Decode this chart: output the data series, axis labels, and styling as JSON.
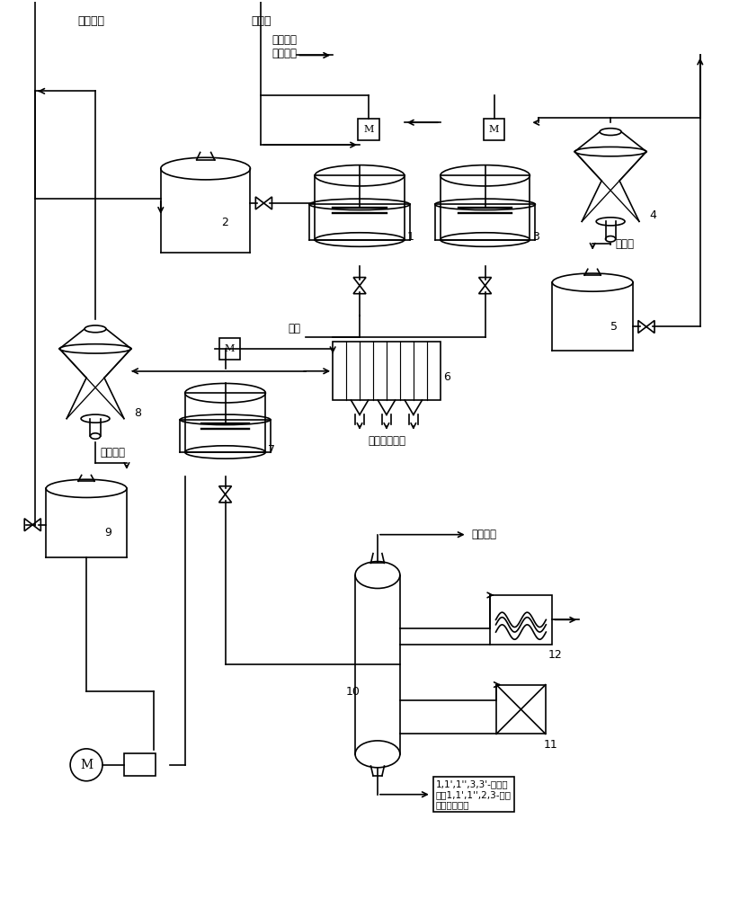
{
  "bg_color": "#ffffff",
  "line_color": "#000000",
  "line_width": 1.2,
  "fig_width": 8.22,
  "fig_height": 10.0,
  "labels": {
    "CCl4_top": "四氯化碳",
    "vinyl_top": "氯乙烯",
    "catalyst": "催化剂、\n助催化剂",
    "filtrate": "滤液",
    "filter_cake": "滤饼（套用）",
    "CCl4_mid": "四氯化碳",
    "vinyl_mid": "氯乙烯",
    "top_product": "塔顶产品",
    "bottom_product": "1,1',1'',3,3'-五氯丙\n烷和1,1',1'',2,3-五氯\n丙烷的混合物",
    "eq1": "1",
    "eq2": "2",
    "eq3": "3",
    "eq4": "4",
    "eq5": "5",
    "eq6": "6",
    "eq7": "7",
    "eq8": "8",
    "eq9": "9",
    "eq10": "10",
    "eq11": "11",
    "eq12": "12"
  }
}
